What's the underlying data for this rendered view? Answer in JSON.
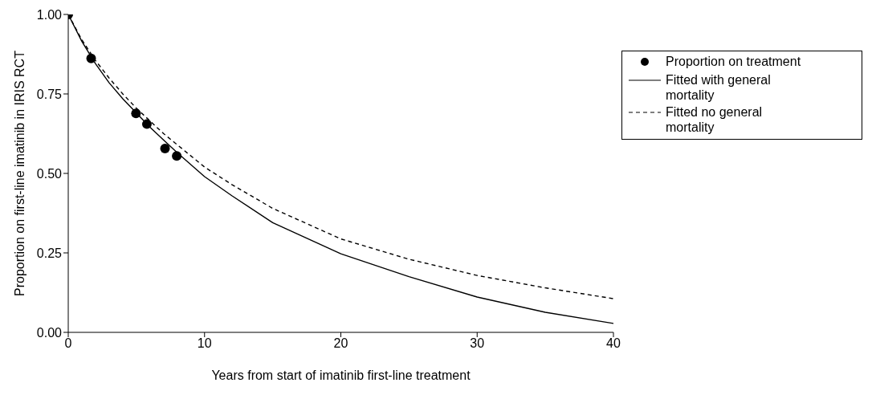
{
  "chart_data": {
    "type": "line",
    "xlabel": "Years from start of imatinib first-line treatment",
    "ylabel": "Proportion on first-line imatinib in IRIS RCT",
    "xlim": [
      0,
      40
    ],
    "xticks": [
      0,
      10,
      20,
      30,
      40
    ],
    "ylim": [
      0,
      1
    ],
    "yticks": [
      {
        "value": 0,
        "label": "0.00"
      },
      {
        "value": 0.25,
        "label": "0.25"
      },
      {
        "value": 0.5,
        "label": "0.50"
      },
      {
        "value": 0.75,
        "label": "0.75"
      },
      {
        "value": 1,
        "label": "1.00"
      }
    ],
    "grid": false,
    "legend": "top right",
    "series": [
      {
        "name": "Proportion on treatment",
        "type": "scatter",
        "marker": "circle",
        "color": "#000000",
        "x": [
          0,
          1.68,
          4.97,
          5.77,
          7.1,
          7.96
        ],
        "values": [
          1.0,
          0.862,
          0.689,
          0.655,
          0.578,
          0.555
        ]
      },
      {
        "name": "Fitted with general mortality",
        "marker": "none",
        "line_style": "solid",
        "color": "#000000",
        "x": [
          0,
          1,
          2,
          3,
          4,
          5,
          6,
          7,
          8,
          10,
          12,
          15,
          20,
          25,
          30,
          35,
          40
        ],
        "values": [
          1.0,
          0.915,
          0.845,
          0.785,
          0.735,
          0.69,
          0.645,
          0.605,
          0.565,
          0.49,
          0.43,
          0.345,
          0.247,
          0.175,
          0.111,
          0.063,
          0.028
        ]
      },
      {
        "name": "Fitted no general mortality",
        "marker": "none",
        "line_style": "dashed",
        "color": "#000000",
        "x": [
          0,
          1,
          2,
          3,
          4,
          5,
          6,
          7,
          8,
          10,
          12,
          15,
          20,
          25,
          30,
          35,
          40
        ],
        "values": [
          1.0,
          0.92,
          0.855,
          0.8,
          0.75,
          0.705,
          0.665,
          0.625,
          0.59,
          0.52,
          0.465,
          0.39,
          0.294,
          0.23,
          0.179,
          0.14,
          0.106
        ]
      }
    ]
  }
}
